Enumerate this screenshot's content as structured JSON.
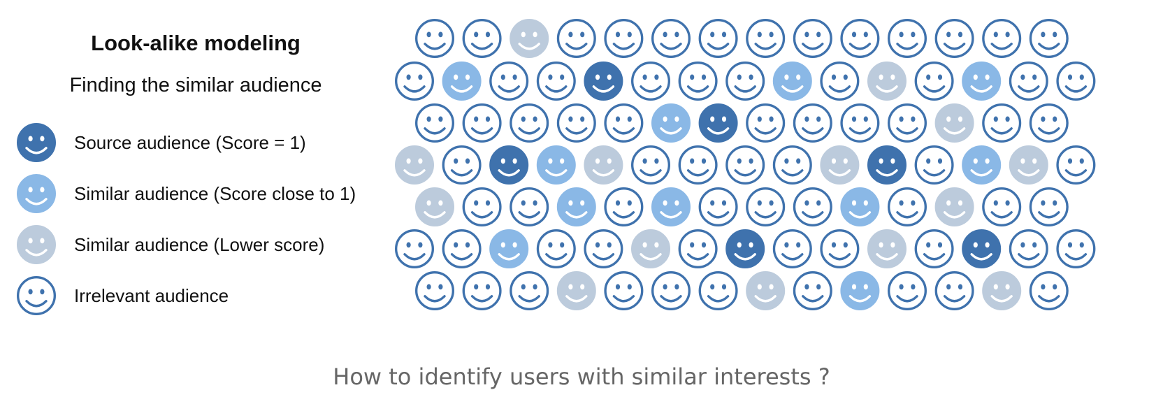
{
  "title": "Look-alike modeling",
  "subtitle": "Finding the similar audience",
  "colors": {
    "source": "#3f72ad",
    "similar_high": "#8ab8e6",
    "similar_low": "#bccbdc",
    "irrelevant_stroke": "#3f72ad",
    "irrelevant_fill": "#ffffff"
  },
  "legend": [
    {
      "type": "source",
      "label": "Source audience (Score = 1)"
    },
    {
      "type": "similar_high",
      "label": "Similar audience (Score close to 1)"
    },
    {
      "type": "similar_low",
      "label": "Similar audience (Lower score)"
    },
    {
      "type": "irrelevant",
      "label": "Irrelevant audience"
    }
  ],
  "audience_grid": [
    [
      "I",
      "I",
      "L",
      "I",
      "I",
      "I",
      "I",
      "I",
      "I",
      "I",
      "I",
      "I",
      "I",
      "I"
    ],
    [
      "I",
      "H",
      "I",
      "I",
      "S",
      "I",
      "I",
      "I",
      "H",
      "I",
      "L",
      "I",
      "H",
      "I",
      "I"
    ],
    [
      "I",
      "I",
      "I",
      "I",
      "I",
      "H",
      "S",
      "I",
      "I",
      "I",
      "I",
      "L",
      "I",
      "I"
    ],
    [
      "L",
      "I",
      "S",
      "H",
      "L",
      "I",
      "I",
      "I",
      "I",
      "L",
      "S",
      "I",
      "H",
      "L",
      "I"
    ],
    [
      "L",
      "I",
      "I",
      "H",
      "I",
      "H",
      "I",
      "I",
      "I",
      "H",
      "I",
      "L",
      "I",
      "I"
    ],
    [
      "I",
      "I",
      "H",
      "I",
      "I",
      "L",
      "I",
      "S",
      "I",
      "I",
      "L",
      "I",
      "S",
      "I",
      "I"
    ],
    [
      "I",
      "I",
      "I",
      "L",
      "I",
      "I",
      "I",
      "L",
      "I",
      "H",
      "I",
      "I",
      "L",
      "I"
    ]
  ],
  "caption": "How to identify users with similar interests ?"
}
